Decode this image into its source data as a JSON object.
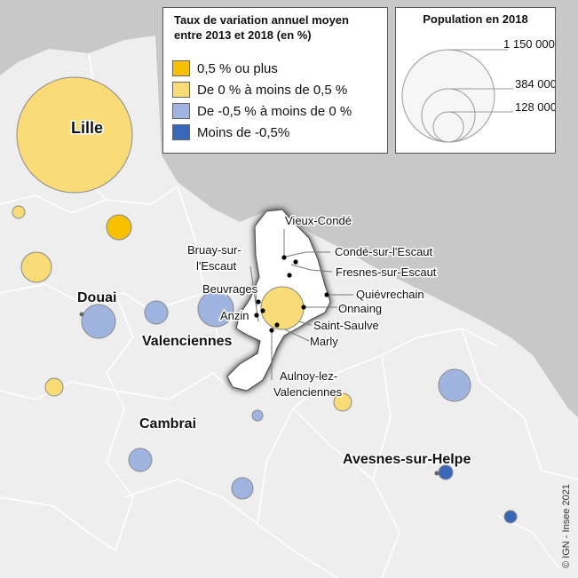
{
  "legend_rate": {
    "title_line1": "Taux de variation annuel moyen",
    "title_line2": "entre 2013 et 2018 (en %)",
    "classes": [
      {
        "label": "0,5 % ou plus",
        "color": "#f7c100"
      },
      {
        "label": "De 0 % à moins de 0,5 %",
        "color": "#f9dc78"
      },
      {
        "label": "De -0,5 % à moins de 0 %",
        "color": "#a0b4e0"
      },
      {
        "label": "Moins de -0,5%",
        "color": "#3a68b8"
      }
    ]
  },
  "legend_population": {
    "title": "Population en 2018",
    "values": [
      "1 150 000",
      "384 000",
      "128 000"
    ]
  },
  "places": {
    "lille": "Lille",
    "douai": "Douai",
    "valenciennes": "Valenciennes",
    "cambrai": "Cambrai",
    "avesnes": "Avesnes-sur-Helpe",
    "vieux_conde": "Vieux-Condé",
    "conde": "Condé-sur-l'Escaut",
    "fresnes": "Fresnes-sur-Escaut",
    "quievrechain": "Quiévrechain",
    "onnaing": "Onnaing",
    "saint_saulve": "Saint-Saulve",
    "marly": "Marly",
    "aulnoy_line1": "Aulnoy-lez-",
    "aulnoy_line2": "Valenciennes",
    "bruay_line1": "Bruay-sur-",
    "bruay_line2": "l'Escaut",
    "beuvrages": "Beuvrages",
    "anzin": "Anzin"
  },
  "colors": {
    "background_foreign": "#c8c8c8",
    "background_territory": "#eeeeee",
    "borders": "#ffffff",
    "highlight_zone": "#ffffff",
    "highlight_border": "#444444"
  },
  "credit": "© IGN - Insee 2021"
}
